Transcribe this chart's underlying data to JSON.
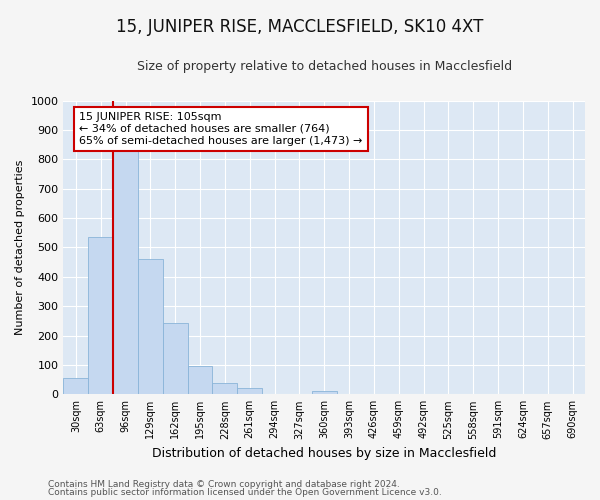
{
  "title": "15, JUNIPER RISE, MACCLESFIELD, SK10 4XT",
  "subtitle": "Size of property relative to detached houses in Macclesfield",
  "xlabel": "Distribution of detached houses by size in Macclesfield",
  "ylabel": "Number of detached properties",
  "bar_color": "#c5d8f0",
  "bar_edge_color": "#8ab4d8",
  "background_color": "#dde8f4",
  "grid_color": "#ffffff",
  "fig_background": "#f5f5f5",
  "categories": [
    "30sqm",
    "63sqm",
    "96sqm",
    "129sqm",
    "162sqm",
    "195sqm",
    "228sqm",
    "261sqm",
    "294sqm",
    "327sqm",
    "360sqm",
    "393sqm",
    "426sqm",
    "459sqm",
    "492sqm",
    "525sqm",
    "558sqm",
    "591sqm",
    "624sqm",
    "657sqm",
    "690sqm"
  ],
  "values": [
    55,
    535,
    835,
    460,
    242,
    97,
    38,
    20,
    0,
    0,
    10,
    0,
    0,
    0,
    0,
    0,
    0,
    0,
    0,
    0,
    0
  ],
  "ylim": [
    0,
    1000
  ],
  "yticks": [
    0,
    100,
    200,
    300,
    400,
    500,
    600,
    700,
    800,
    900,
    1000
  ],
  "property_line_x": 1.5,
  "property_line_color": "#cc0000",
  "annotation_text": "15 JUNIPER RISE: 105sqm\n← 34% of detached houses are smaller (764)\n65% of semi-detached houses are larger (1,473) →",
  "annotation_box_color": "#ffffff",
  "annotation_box_edge_color": "#cc0000",
  "footnote1": "Contains HM Land Registry data © Crown copyright and database right 2024.",
  "footnote2": "Contains public sector information licensed under the Open Government Licence v3.0.",
  "title_fontsize": 12,
  "subtitle_fontsize": 9,
  "xlabel_fontsize": 9,
  "ylabel_fontsize": 8,
  "annot_fontsize": 8,
  "footnote_fontsize": 6.5
}
